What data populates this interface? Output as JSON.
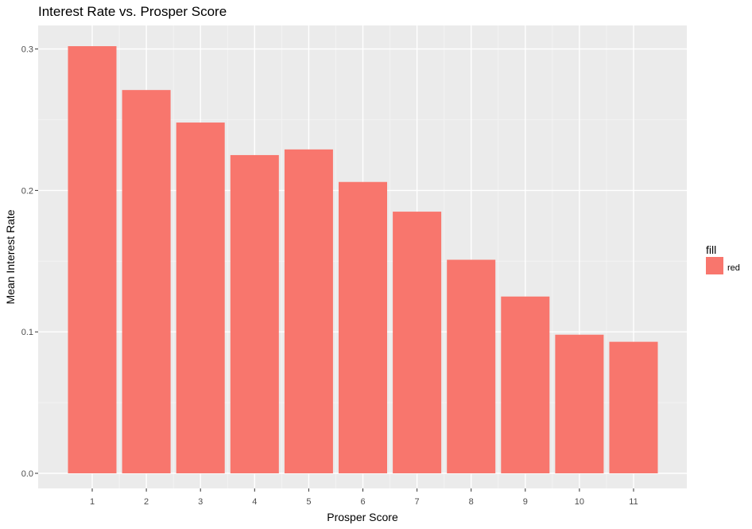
{
  "chart_data": {
    "type": "bar",
    "title": "Interest Rate vs. Prosper Score",
    "xlabel": "Prosper Score",
    "ylabel": "Mean Interest Rate",
    "categories": [
      "1",
      "2",
      "3",
      "4",
      "5",
      "6",
      "7",
      "8",
      "9",
      "10",
      "11"
    ],
    "values": [
      0.302,
      0.271,
      0.248,
      0.225,
      0.229,
      0.206,
      0.185,
      0.151,
      0.125,
      0.098,
      0.093
    ],
    "ylim": [
      0.0,
      0.3
    ],
    "yticks": [
      "0.0",
      "0.1",
      "0.2",
      "0.3"
    ],
    "grid": true,
    "legend": {
      "title": "fill",
      "placement": "right",
      "items": [
        {
          "label": "red",
          "color": "#F8766D"
        }
      ]
    },
    "colors": {
      "bar": "#F8766D",
      "panel": "#EBEBEB",
      "grid_major": "#FFFFFF",
      "grid_minor": "#F5F5F5"
    }
  }
}
